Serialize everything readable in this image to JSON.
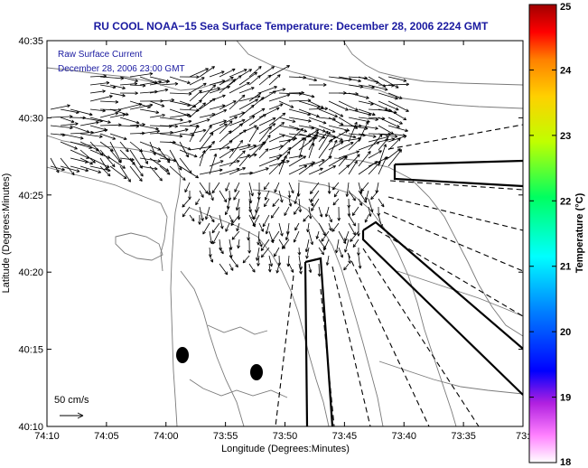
{
  "title": "RU COOL  NOAA−15  Sea Surface Temperature:  December 28, 2006 2224 GMT",
  "legend": {
    "line1": "Raw Surface Current",
    "line2": "December 28, 2006 23:00 GMT",
    "scale_label": "50 cm/s"
  },
  "axes": {
    "xlabel": "Longitude (Degrees:Minutes)",
    "ylabel": "Latitude (Degrees:Minutes)",
    "xticks": [
      "74:10",
      "74:05",
      "74:00",
      "73:55",
      "73:50",
      "73:45",
      "73:40",
      "73:35",
      "73:3"
    ],
    "yticks": [
      "40:35",
      "40:30",
      "40:25",
      "40:20",
      "40:15",
      "40:10"
    ]
  },
  "colorbar": {
    "label": "Temperature (°C)",
    "ticks": [
      "25",
      "24",
      "23",
      "22",
      "21",
      "20",
      "19",
      "18"
    ],
    "range": [
      18,
      25
    ]
  },
  "colors": {
    "title": "#1a1aa0",
    "coast": "#7a7a7a",
    "vectors": "#000000"
  }
}
